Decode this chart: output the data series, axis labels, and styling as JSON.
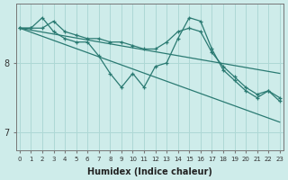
{
  "xlabel": "Humidex (Indice chaleur)",
  "bg_color": "#ceecea",
  "grid_color": "#aed8d5",
  "line_color": "#2a7a72",
  "x_values": [
    0,
    1,
    2,
    3,
    4,
    5,
    6,
    7,
    8,
    9,
    10,
    11,
    12,
    13,
    14,
    15,
    16,
    17,
    18,
    19,
    20,
    21,
    22,
    23
  ],
  "line1": [
    8.5,
    8.5,
    8.5,
    8.6,
    8.45,
    8.4,
    8.35,
    8.35,
    8.3,
    8.3,
    8.25,
    8.2,
    8.2,
    8.3,
    8.45,
    8.5,
    8.45,
    8.15,
    7.95,
    7.8,
    7.65,
    7.55,
    7.6,
    7.5
  ],
  "line2": [
    8.5,
    8.5,
    8.65,
    8.45,
    8.35,
    8.3,
    8.3,
    8.1,
    7.85,
    7.65,
    7.85,
    7.65,
    7.95,
    8.0,
    8.35,
    8.65,
    8.6,
    8.2,
    7.9,
    7.75,
    7.6,
    7.5,
    7.6,
    7.45
  ],
  "diag1": [
    8.5,
    7.15
  ],
  "diag2": [
    8.5,
    7.85
  ],
  "yticks": [
    7,
    8
  ],
  "ylim": [
    6.75,
    8.85
  ],
  "xlim": [
    -0.3,
    23.3
  ]
}
